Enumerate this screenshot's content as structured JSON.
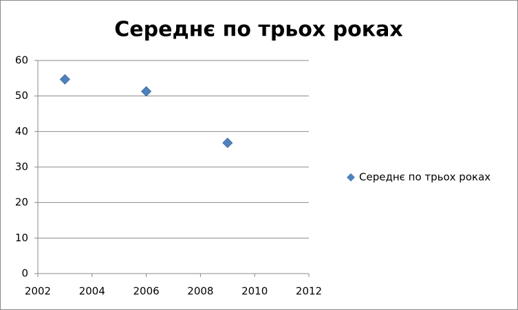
{
  "chart_data": {
    "type": "scatter",
    "title": "Середнє по трьох роках",
    "series": [
      {
        "name": "Середнє по трьох роках",
        "color": "#4f81bd",
        "x": [
          2003,
          2006,
          2009
        ],
        "values": [
          54.7,
          51.3,
          36.8
        ]
      }
    ],
    "xlim": [
      2002,
      2012
    ],
    "xticks": [
      2002,
      2004,
      2006,
      2008,
      2010,
      2012
    ],
    "ylim": [
      0,
      60
    ],
    "yticks": [
      0,
      10,
      20,
      30,
      40,
      50,
      60
    ],
    "grid": true,
    "legend": "right"
  }
}
